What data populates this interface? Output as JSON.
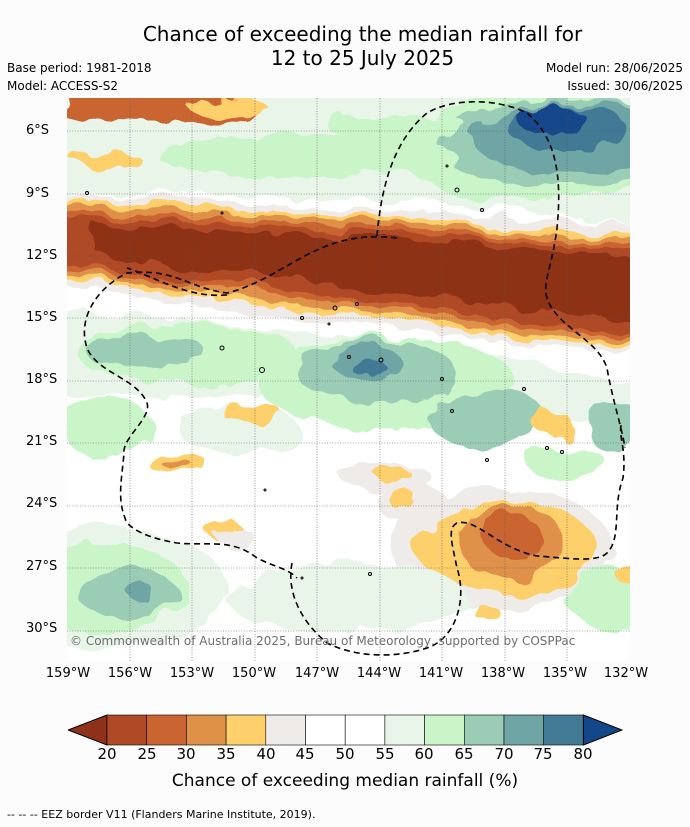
{
  "header": {
    "title_line1": "Chance of exceeding the median rainfall for",
    "title_line2": "12 to 25 July 2025",
    "base_period": "Base period: 1981-2018",
    "model": "Model: ACCESS-S2",
    "model_run": "Model run: 28/06/2025",
    "issued": "Issued: 30/06/2025"
  },
  "copyright": "© Commonwealth of Australia 2025, Bureau of Meteorology, supported by COSPPac",
  "footnote": "--  --  -- EEZ border V11 (Flanders Marine Institute, 2019).",
  "chart_data": {
    "type": "heatmap",
    "title": "Chance of exceeding the median rainfall for 12 to 25 July 2025",
    "lat_ticks": [
      "6°S",
      "9°S",
      "12°S",
      "15°S",
      "18°S",
      "21°S",
      "24°S",
      "27°S",
      "30°S"
    ],
    "lat_values": [
      -6,
      -9,
      -12,
      -15,
      -18,
      -21,
      -24,
      -27,
      -30
    ],
    "lon_ticks": [
      "159°W",
      "156°W",
      "153°W",
      "150°W",
      "147°W",
      "144°W",
      "141°W",
      "138°W",
      "135°W",
      "132°W"
    ],
    "lon_values": [
      -159,
      -156,
      -153,
      -150,
      -147,
      -144,
      -141,
      -138,
      -135,
      -132
    ],
    "xlim": [
      -159,
      -132
    ],
    "ylim": [
      -31.5,
      -4.5
    ],
    "grid": true,
    "colorbar": {
      "label": "Chance of exceeding median rainfall (%)",
      "ticks": [
        "20",
        "25",
        "30",
        "35",
        "40",
        "45",
        "50",
        "55",
        "60",
        "65",
        "70",
        "75",
        "80"
      ],
      "levels": [
        20,
        25,
        30,
        35,
        40,
        45,
        50,
        55,
        60,
        65,
        70,
        75,
        80
      ],
      "colors": [
        "#8e3118",
        "#b04a26",
        "#ca6532",
        "#df9148",
        "#fdd06c",
        "#efebe8",
        "#ffffff",
        "#ffffff",
        "#eaf5ea",
        "#c9f5c9",
        "#9bcdb6",
        "#6fa5a5",
        "#437a96",
        "#14478a"
      ]
    },
    "regions": [
      {
        "band": "northern wet band",
        "lat_range": [
          -4.5,
          -10
        ],
        "value_range": [
          60,
          80
        ]
      },
      {
        "band": "dry band",
        "lat_range": [
          -10.5,
          -14.5
        ],
        "value_range": [
          15,
          35
        ]
      },
      {
        "band": "wet patch",
        "lat_range": [
          -16,
          -18
        ],
        "lon_range": [
          -145,
          -141
        ],
        "value_range": [
          70,
          75
        ]
      },
      {
        "band": "dry patch",
        "lat_range": [
          -24.5,
          -28
        ],
        "lon_range": [
          -141,
          -134
        ],
        "value_range": [
          25,
          40
        ]
      }
    ]
  }
}
